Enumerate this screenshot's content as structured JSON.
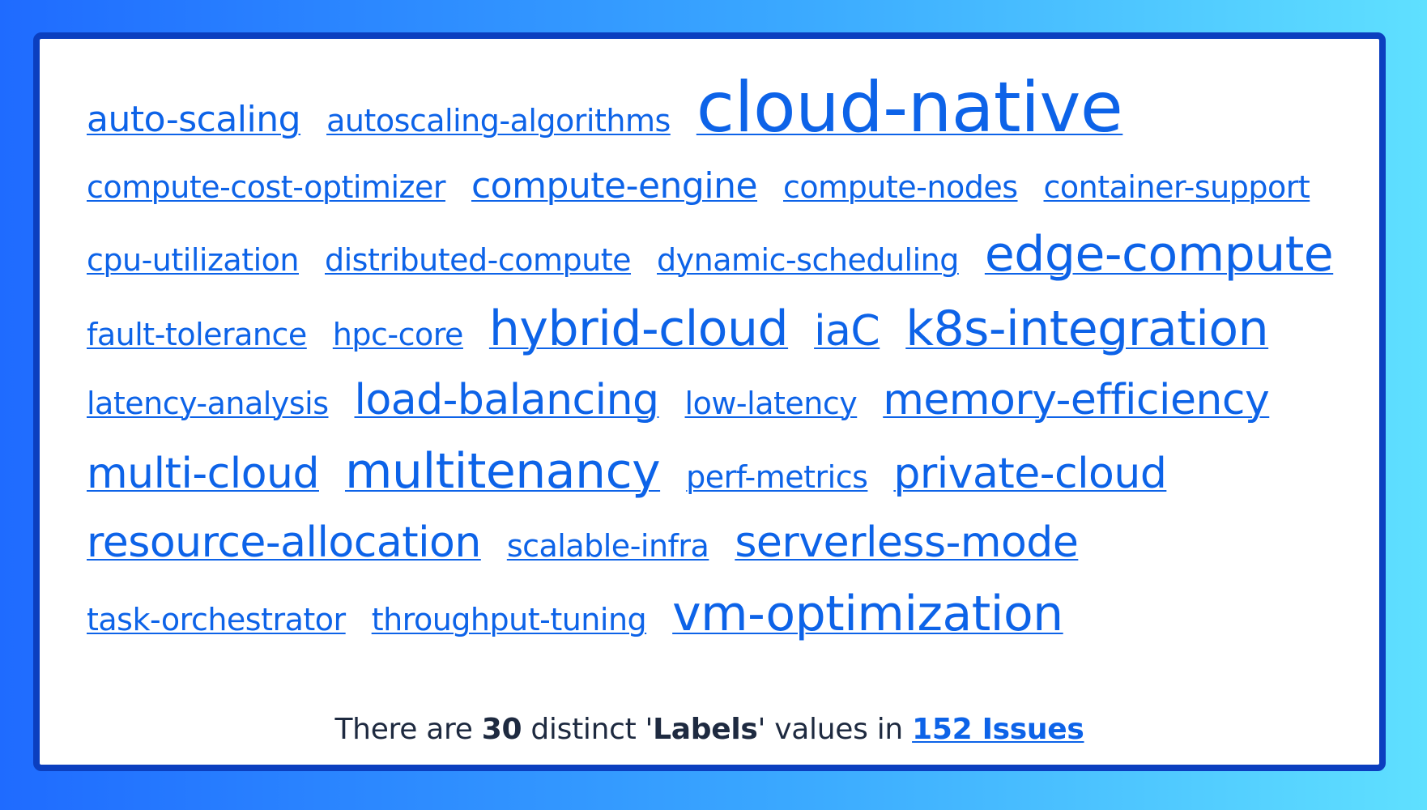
{
  "tag_cloud": {
    "tags": [
      {
        "label": "auto-scaling",
        "size": 3
      },
      {
        "label": "autoscaling-algorithms",
        "size": 1
      },
      {
        "label": "cloud-native",
        "size": 5
      },
      {
        "label": "compute-cost-optimizer",
        "size": 1
      },
      {
        "label": "compute-engine",
        "size": 3
      },
      {
        "label": "compute-nodes",
        "size": 1
      },
      {
        "label": "container-support",
        "size": 1
      },
      {
        "label": "cpu-utilization",
        "size": 1
      },
      {
        "label": "distributed-compute",
        "size": 1
      },
      {
        "label": "dynamic-scheduling",
        "size": 1
      },
      {
        "label": "edge-compute",
        "size": 4
      },
      {
        "label": "fault-tolerance",
        "size": 1
      },
      {
        "label": "hpc-core",
        "size": 1
      },
      {
        "label": "hybrid-cloud",
        "size": 4
      },
      {
        "label": "iaC",
        "size": 3
      },
      {
        "label": "k8s-integration",
        "size": 4
      },
      {
        "label": "latency-analysis",
        "size": 1
      },
      {
        "label": "load-balancing",
        "size": 3
      },
      {
        "label": "low-latency",
        "size": 1
      },
      {
        "label": "memory-efficiency",
        "size": 3
      },
      {
        "label": "multi-cloud",
        "size": 3
      },
      {
        "label": "multitenancy",
        "size": 4
      },
      {
        "label": "perf-metrics",
        "size": 1
      },
      {
        "label": "private-cloud",
        "size": 3
      },
      {
        "label": "resource-allocation",
        "size": 3
      },
      {
        "label": "scalable-infra",
        "size": 1
      },
      {
        "label": "serverless-mode",
        "size": 3
      },
      {
        "label": "task-orchestrator",
        "size": 1
      },
      {
        "label": "throughput-tuning",
        "size": 1
      },
      {
        "label": "vm-optimization",
        "size": 4
      }
    ]
  },
  "summary": {
    "prefix": "There are ",
    "count": "30",
    "middle1": " distinct '",
    "field": "Labels",
    "middle2": "' values in ",
    "issues_link": "152 Issues"
  },
  "colors": {
    "link": "#0d63e8",
    "border": "#0b3fbf",
    "text": "#1e2a40"
  }
}
